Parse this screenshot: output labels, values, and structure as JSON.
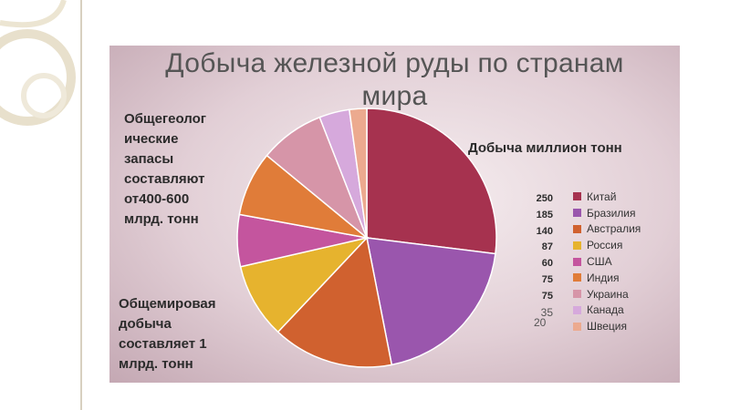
{
  "chart_data": {
    "type": "pie",
    "title": "Добыча железной руды  по странам мира",
    "title_lines": [
      "Добыча железной руды  по странам",
      "мира"
    ],
    "subtitle": "Добыча миллион тонн",
    "legend_position": "right",
    "categories": [
      "Китай",
      "Бразилия",
      "Австралия",
      "Россия",
      "США",
      "Индия",
      "Украина",
      "Канада",
      "Швеция"
    ],
    "values": [
      250,
      185,
      140,
      87,
      60,
      75,
      75,
      35,
      20
    ],
    "value_labels": [
      "250",
      "185",
      "140",
      "87",
      "60",
      "75",
      "75",
      "35",
      "20"
    ],
    "colors": [
      "#a6324f",
      "#9a56ad",
      "#d0612f",
      "#e6b32e",
      "#c4559e",
      "#e07c39",
      "#d695a8",
      "#d6a9dc",
      "#ecaa8f"
    ]
  },
  "notes": {
    "reserves": "Общегеолог ические запасы составляют от400-600 млрд. тонн",
    "reserves_lines": [
      "Общегеолог",
      "ические",
      "запасы",
      "составляют",
      "от400-600",
      "млрд. тонн"
    ],
    "world_output": "Общемировая добыча составляет 1 млрд. тонн",
    "world_output_lines": [
      "Общемировая",
      "добыча",
      "составляет 1",
      "млрд. тонн"
    ]
  }
}
